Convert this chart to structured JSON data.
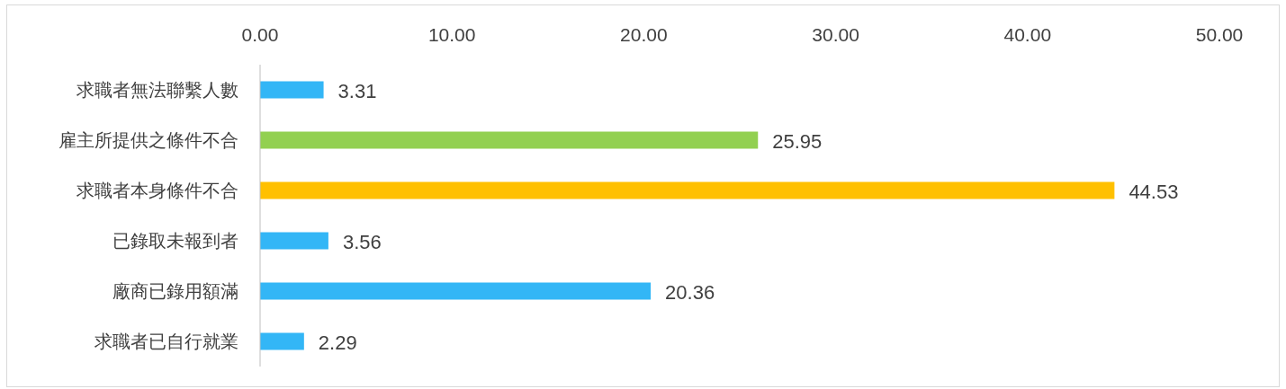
{
  "chart_data": {
    "type": "bar",
    "orientation": "horizontal",
    "categories": [
      "求職者無法聯繫人數",
      "雇主所提供之條件不合",
      "求職者本身條件不合",
      "已錄取未報到者",
      "廠商已錄用額滿",
      "求職者已自行就業"
    ],
    "values": [
      3.31,
      25.95,
      44.53,
      3.56,
      20.36,
      2.29
    ],
    "colors": [
      "#33b6f6",
      "#92d050",
      "#ffc000",
      "#33b6f6",
      "#33b6f6",
      "#33b6f6"
    ],
    "xlim": [
      0,
      50
    ],
    "xticks": [
      {
        "value": 0,
        "label": "0.00"
      },
      {
        "value": 10,
        "label": "10.00"
      },
      {
        "value": 20,
        "label": "20.00"
      },
      {
        "value": 30,
        "label": "30.00"
      },
      {
        "value": 40,
        "label": "40.00"
      },
      {
        "value": 50,
        "label": "50.00"
      }
    ],
    "data_labels": true,
    "grid": false
  }
}
